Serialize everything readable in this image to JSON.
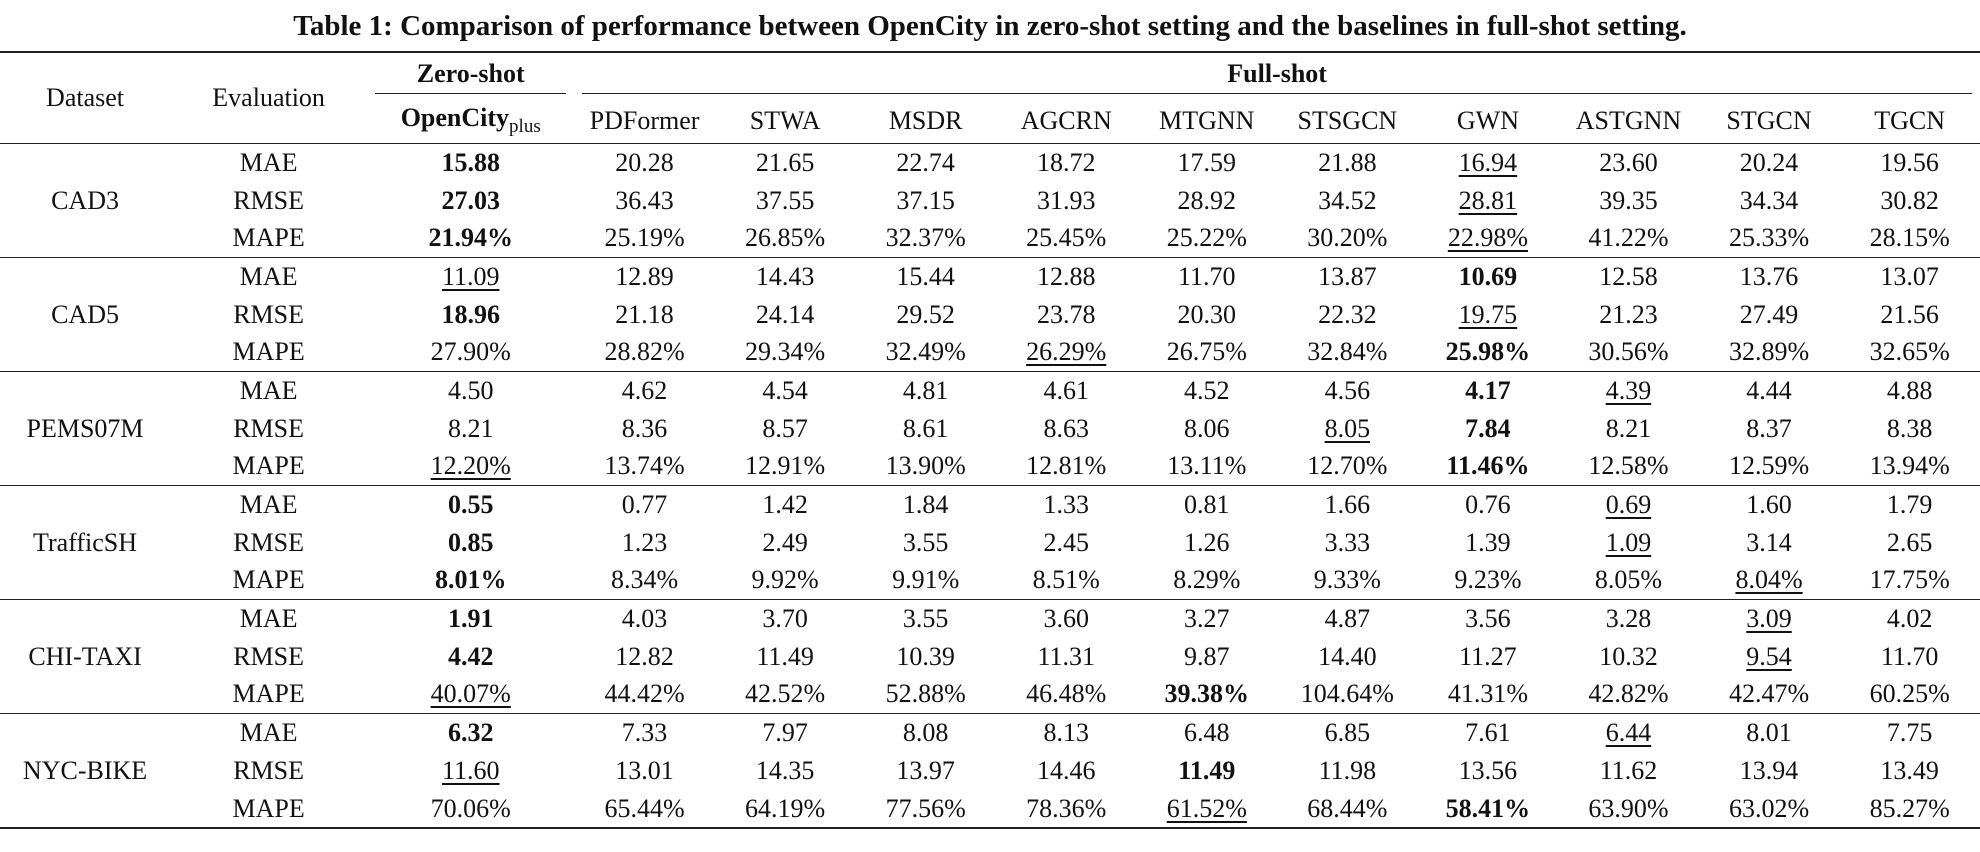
{
  "caption": "Table 1: Comparison of performance between OpenCity in zero-shot setting and the baselines in full-shot setting.",
  "headers": {
    "dataset": "Dataset",
    "evaluation": "Evaluation",
    "zero_shot": "Zero-shot",
    "full_shot": "Full-shot",
    "opencity_main": "OpenCity",
    "opencity_sub": "plus",
    "baselines": [
      "PDFormer",
      "STWA",
      "MSDR",
      "AGCRN",
      "MTGNN",
      "STSGCN",
      "GWN",
      "ASTGNN",
      "STGCN",
      "TGCN"
    ]
  },
  "datasets": [
    {
      "name": "CAD3",
      "rows": [
        {
          "metric": "MAE",
          "values": [
            "15.88",
            "20.28",
            "21.65",
            "22.74",
            "18.72",
            "17.59",
            "21.88",
            "16.94",
            "23.60",
            "20.24",
            "19.56"
          ],
          "bold": [
            0
          ],
          "underline": [
            7
          ]
        },
        {
          "metric": "RMSE",
          "values": [
            "27.03",
            "36.43",
            "37.55",
            "37.15",
            "31.93",
            "28.92",
            "34.52",
            "28.81",
            "39.35",
            "34.34",
            "30.82"
          ],
          "bold": [
            0
          ],
          "underline": [
            7
          ]
        },
        {
          "metric": "MAPE",
          "values": [
            "21.94%",
            "25.19%",
            "26.85%",
            "32.37%",
            "25.45%",
            "25.22%",
            "30.20%",
            "22.98%",
            "41.22%",
            "25.33%",
            "28.15%"
          ],
          "bold": [
            0
          ],
          "underline": [
            7
          ]
        }
      ]
    },
    {
      "name": "CAD5",
      "rows": [
        {
          "metric": "MAE",
          "values": [
            "11.09",
            "12.89",
            "14.43",
            "15.44",
            "12.88",
            "11.70",
            "13.87",
            "10.69",
            "12.58",
            "13.76",
            "13.07"
          ],
          "bold": [
            7
          ],
          "underline": [
            0
          ]
        },
        {
          "metric": "RMSE",
          "values": [
            "18.96",
            "21.18",
            "24.14",
            "29.52",
            "23.78",
            "20.30",
            "22.32",
            "19.75",
            "21.23",
            "27.49",
            "21.56"
          ],
          "bold": [
            0
          ],
          "underline": [
            7
          ]
        },
        {
          "metric": "MAPE",
          "values": [
            "27.90%",
            "28.82%",
            "29.34%",
            "32.49%",
            "26.29%",
            "26.75%",
            "32.84%",
            "25.98%",
            "30.56%",
            "32.89%",
            "32.65%"
          ],
          "bold": [
            7
          ],
          "underline": [
            4
          ]
        }
      ]
    },
    {
      "name": "PEMS07M",
      "rows": [
        {
          "metric": "MAE",
          "values": [
            "4.50",
            "4.62",
            "4.54",
            "4.81",
            "4.61",
            "4.52",
            "4.56",
            "4.17",
            "4.39",
            "4.44",
            "4.88"
          ],
          "bold": [
            7
          ],
          "underline": [
            8
          ]
        },
        {
          "metric": "RMSE",
          "values": [
            "8.21",
            "8.36",
            "8.57",
            "8.61",
            "8.63",
            "8.06",
            "8.05",
            "7.84",
            "8.21",
            "8.37",
            "8.38"
          ],
          "bold": [
            7
          ],
          "underline": [
            6
          ]
        },
        {
          "metric": "MAPE",
          "values": [
            "12.20%",
            "13.74%",
            "12.91%",
            "13.90%",
            "12.81%",
            "13.11%",
            "12.70%",
            "11.46%",
            "12.58%",
            "12.59%",
            "13.94%"
          ],
          "bold": [
            7
          ],
          "underline": [
            0
          ]
        }
      ]
    },
    {
      "name": "TrafficSH",
      "rows": [
        {
          "metric": "MAE",
          "values": [
            "0.55",
            "0.77",
            "1.42",
            "1.84",
            "1.33",
            "0.81",
            "1.66",
            "0.76",
            "0.69",
            "1.60",
            "1.79"
          ],
          "bold": [
            0
          ],
          "underline": [
            8
          ]
        },
        {
          "metric": "RMSE",
          "values": [
            "0.85",
            "1.23",
            "2.49",
            "3.55",
            "2.45",
            "1.26",
            "3.33",
            "1.39",
            "1.09",
            "3.14",
            "2.65"
          ],
          "bold": [
            0
          ],
          "underline": [
            8
          ]
        },
        {
          "metric": "MAPE",
          "values": [
            "8.01%",
            "8.34%",
            "9.92%",
            "9.91%",
            "8.51%",
            "8.29%",
            "9.33%",
            "9.23%",
            "8.05%",
            "8.04%",
            "17.75%"
          ],
          "bold": [
            0
          ],
          "underline": [
            9
          ]
        }
      ]
    },
    {
      "name": "CHI-TAXI",
      "rows": [
        {
          "metric": "MAE",
          "values": [
            "1.91",
            "4.03",
            "3.70",
            "3.55",
            "3.60",
            "3.27",
            "4.87",
            "3.56",
            "3.28",
            "3.09",
            "4.02"
          ],
          "bold": [
            0
          ],
          "underline": [
            9
          ]
        },
        {
          "metric": "RMSE",
          "values": [
            "4.42",
            "12.82",
            "11.49",
            "10.39",
            "11.31",
            "9.87",
            "14.40",
            "11.27",
            "10.32",
            "9.54",
            "11.70"
          ],
          "bold": [
            0
          ],
          "underline": [
            9
          ]
        },
        {
          "metric": "MAPE",
          "values": [
            "40.07%",
            "44.42%",
            "42.52%",
            "52.88%",
            "46.48%",
            "39.38%",
            "104.64%",
            "41.31%",
            "42.82%",
            "42.47%",
            "60.25%"
          ],
          "bold": [
            5
          ],
          "underline": [
            0
          ]
        }
      ]
    },
    {
      "name": "NYC-BIKE",
      "rows": [
        {
          "metric": "MAE",
          "values": [
            "6.32",
            "7.33",
            "7.97",
            "8.08",
            "8.13",
            "6.48",
            "6.85",
            "7.61",
            "6.44",
            "8.01",
            "7.75"
          ],
          "bold": [
            0
          ],
          "underline": [
            8
          ]
        },
        {
          "metric": "RMSE",
          "values": [
            "11.60",
            "13.01",
            "14.35",
            "13.97",
            "14.46",
            "11.49",
            "11.98",
            "13.56",
            "11.62",
            "13.94",
            "13.49"
          ],
          "bold": [
            5
          ],
          "underline": [
            0
          ]
        },
        {
          "metric": "MAPE",
          "values": [
            "70.06%",
            "65.44%",
            "64.19%",
            "77.56%",
            "78.36%",
            "61.52%",
            "68.44%",
            "58.41%",
            "63.90%",
            "63.02%",
            "85.27%"
          ],
          "bold": [
            7
          ],
          "underline": [
            5
          ]
        }
      ]
    }
  ]
}
